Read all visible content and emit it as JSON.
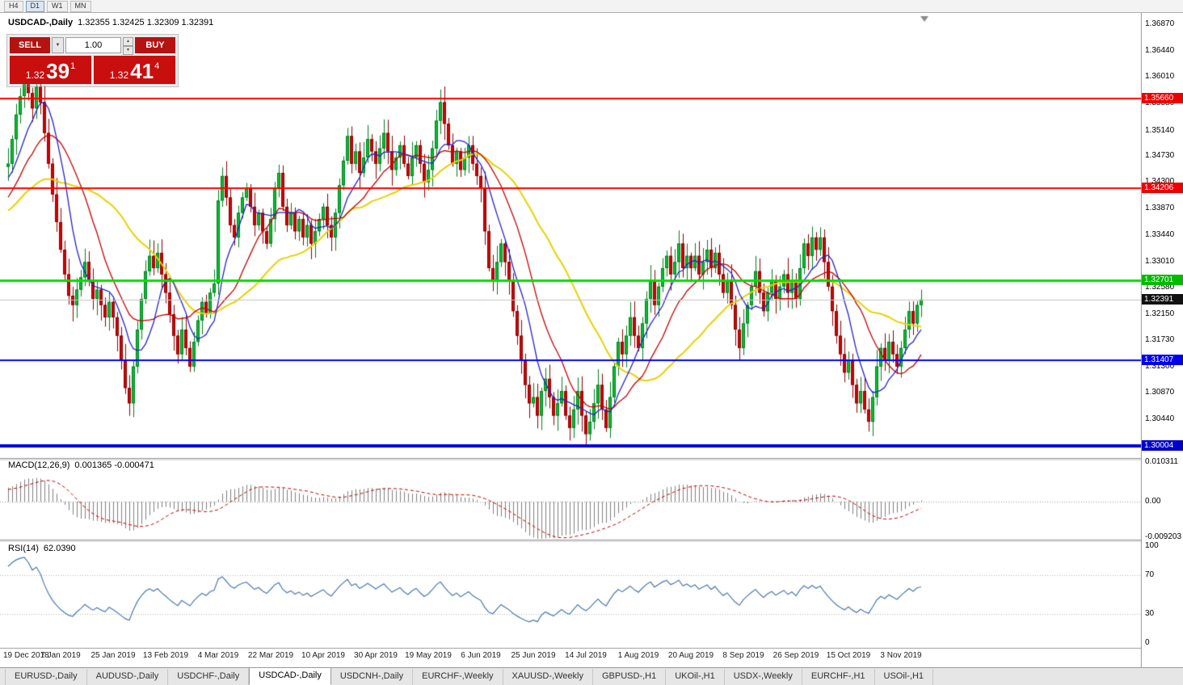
{
  "toolbar": {
    "timeframes": [
      {
        "label": "H4",
        "active": false
      },
      {
        "label": "D1",
        "active": true
      },
      {
        "label": "W1",
        "active": false
      },
      {
        "label": "MN",
        "active": false
      }
    ]
  },
  "header": {
    "title": "USDCAD-,Daily",
    "ohlc": "1.32355 1.32425 1.32309 1.32391"
  },
  "trade_panel": {
    "sell_label": "SELL",
    "buy_label": "BUY",
    "volume": "1.00",
    "combo_arrow": "▼",
    "spin_up": "▲",
    "spin_down": "▼",
    "sell_price": {
      "prefix": "1.32",
      "big": "39",
      "sup": "1"
    },
    "buy_price": {
      "prefix": "1.32",
      "big": "41",
      "sup": "4"
    }
  },
  "tabs": [
    {
      "label": "EURUSD-,Daily",
      "active": false
    },
    {
      "label": "AUDUSD-,Daily",
      "active": false
    },
    {
      "label": "USDCHF-,Daily",
      "active": false
    },
    {
      "label": "USDCAD-,Daily",
      "active": true
    },
    {
      "label": "USDCNH-,Daily",
      "active": false
    },
    {
      "label": "EURCHF-,Weekly",
      "active": false
    },
    {
      "label": "XAUUSD-,Weekly",
      "active": false
    },
    {
      "label": "GBPUSD-,H1",
      "active": false
    },
    {
      "label": "UKOil-,H1",
      "active": false
    },
    {
      "label": "USDX-,Weekly",
      "active": false
    },
    {
      "label": "EURCHF-,H1",
      "active": false
    },
    {
      "label": "USOil-,H1",
      "active": false
    }
  ],
  "chart_data": {
    "type": "candlestick",
    "symbol": "USDCAD-",
    "timeframe": "Daily",
    "current_price": 1.32391,
    "price_range": [
      1.29836,
      1.37028
    ],
    "axis_ticks": [
      "1.36870",
      "1.36440",
      "1.36010",
      "1.35580",
      "1.35140",
      "1.34730",
      "1.34300",
      "1.33870",
      "1.33440",
      "1.33010",
      "1.32580",
      "1.32150",
      "1.31730",
      "1.31300",
      "1.30870",
      "1.30440"
    ],
    "hlines": [
      {
        "price": 1.3566,
        "color": "#FF0000",
        "width": 2,
        "label": "1.35660",
        "label_bg": "#EE0000"
      },
      {
        "price": 1.34206,
        "color": "#FF0000",
        "width": 2,
        "label": "1.34206",
        "label_bg": "#EE0000"
      },
      {
        "price": 1.32701,
        "color": "#00E000",
        "width": 3,
        "label": "1.32701",
        "label_bg": "#00BB00"
      },
      {
        "price": 1.32391,
        "color": "#C4C4C4",
        "width": 1,
        "label": "1.32391",
        "label_bg": "#111111"
      },
      {
        "price": 1.31407,
        "color": "#0000FF",
        "width": 2,
        "label": "1.31407",
        "label_bg": "#0000EE"
      },
      {
        "price": 1.30004,
        "color": "#0000DD",
        "width": 4,
        "label": "1.30004",
        "label_bg": "#0000CC"
      }
    ],
    "colors": {
      "candle_up": "#00C22E",
      "candle_up_border": "#007D1F",
      "candle_down": "#D60000",
      "candle_down_border": "#8A0000"
    },
    "ma": [
      {
        "period": 34,
        "color": "#E8D100",
        "width": 2
      },
      {
        "period": 16,
        "color": "#C40000",
        "width": 1.3
      },
      {
        "period": 8,
        "color": "#2222CC",
        "width": 1.3
      }
    ],
    "warmup": [
      1.33,
      1.331,
      1.33,
      1.332,
      1.334,
      1.333,
      1.335,
      1.337,
      1.336,
      1.338,
      1.34,
      1.339,
      1.341,
      1.342,
      1.341,
      1.343,
      1.344,
      1.343,
      1.345,
      1.3455
    ],
    "closes": [
      1.346,
      1.35,
      1.354,
      1.357,
      1.359,
      1.3575,
      1.355,
      1.3585,
      1.356,
      1.351,
      1.346,
      1.341,
      1.3365,
      1.332,
      1.328,
      1.3245,
      1.323,
      1.3255,
      1.3275,
      1.33,
      1.327,
      1.324,
      1.3255,
      1.323,
      1.321,
      1.3235,
      1.321,
      1.318,
      1.314,
      1.3095,
      1.307,
      1.313,
      1.319,
      1.324,
      1.3285,
      1.331,
      1.329,
      1.3315,
      1.328,
      1.325,
      1.3215,
      1.318,
      1.315,
      1.319,
      1.316,
      1.313,
      1.317,
      1.3205,
      1.3235,
      1.3215,
      1.325,
      1.3265,
      1.34,
      1.344,
      1.3405,
      1.336,
      1.334,
      1.338,
      1.3405,
      1.342,
      1.339,
      1.336,
      1.338,
      1.335,
      1.333,
      1.337,
      1.342,
      1.3445,
      1.339,
      1.336,
      1.338,
      1.335,
      1.337,
      1.334,
      1.336,
      1.333,
      1.335,
      1.337,
      1.339,
      1.336,
      1.334,
      1.338,
      1.3425,
      1.3465,
      1.3505,
      1.346,
      1.348,
      1.3445,
      1.347,
      1.35,
      1.348,
      1.346,
      1.3485,
      1.351,
      1.348,
      1.345,
      1.347,
      1.349,
      1.346,
      1.344,
      1.347,
      1.349,
      1.346,
      1.343,
      1.345,
      1.3485,
      1.353,
      1.356,
      1.3525,
      1.349,
      1.346,
      1.348,
      1.345,
      1.347,
      1.349,
      1.346,
      1.344,
      1.342,
      1.335,
      1.329,
      1.327,
      1.33,
      1.333,
      1.33,
      1.327,
      1.322,
      1.318,
      1.314,
      1.31,
      1.307,
      1.308,
      1.305,
      1.309,
      1.311,
      1.308,
      1.305,
      1.307,
      1.309,
      1.305,
      1.303,
      1.306,
      1.309,
      1.305,
      1.302,
      1.304,
      1.307,
      1.31,
      1.306,
      1.303,
      1.308,
      1.313,
      1.317,
      1.315,
      1.318,
      1.321,
      1.318,
      1.316,
      1.32,
      1.324,
      1.327,
      1.323,
      1.326,
      1.329,
      1.331,
      1.328,
      1.33,
      1.333,
      1.329,
      1.331,
      1.329,
      1.331,
      1.328,
      1.33,
      1.332,
      1.329,
      1.3315,
      1.328,
      1.325,
      1.327,
      1.323,
      1.319,
      1.316,
      1.32,
      1.323,
      1.326,
      1.3285,
      1.325,
      1.322,
      1.325,
      1.327,
      1.324,
      1.326,
      1.328,
      1.325,
      1.327,
      1.324,
      1.329,
      1.333,
      1.331,
      1.334,
      1.332,
      1.334,
      1.33,
      1.326,
      1.322,
      1.318,
      1.315,
      1.312,
      1.314,
      1.31,
      1.307,
      1.309,
      1.306,
      1.304,
      1.308,
      1.313,
      1.316,
      1.314,
      1.317,
      1.315,
      1.313,
      1.316,
      1.319,
      1.322,
      1.32,
      1.323,
      1.3239
    ],
    "date_labels": [
      {
        "i": 0,
        "label": "19 Dec 2018"
      },
      {
        "i": 13,
        "label": "7 Jan 2019"
      },
      {
        "i": 26,
        "label": "25 Jan 2019"
      },
      {
        "i": 39,
        "label": "13 Feb 2019"
      },
      {
        "i": 52,
        "label": "4 Mar 2019"
      },
      {
        "i": 65,
        "label": "22 Mar 2019"
      },
      {
        "i": 78,
        "label": "10 Apr 2019"
      },
      {
        "i": 91,
        "label": "30 Apr 2019"
      },
      {
        "i": 104,
        "label": "19 May 2019"
      },
      {
        "i": 117,
        "label": "6 Jun 2019"
      },
      {
        "i": 130,
        "label": "25 Jun 2019"
      },
      {
        "i": 143,
        "label": "14 Jul 2019"
      },
      {
        "i": 156,
        "label": "1 Aug 2019"
      },
      {
        "i": 169,
        "label": "20 Aug 2019"
      },
      {
        "i": 182,
        "label": "8 Sep 2019"
      },
      {
        "i": 195,
        "label": "26 Sep 2019"
      },
      {
        "i": 208,
        "label": "15 Oct 2019"
      },
      {
        "i": 221,
        "label": "3 Nov 2019"
      }
    ],
    "macd": {
      "label": "MACD(12,26,9)",
      "values": "0.001365 -0.000471",
      "fast": 12,
      "slow": 26,
      "signal_period": 9,
      "range": [
        -0.009203,
        0.010311
      ],
      "axis": [
        {
          "v": 0.010311,
          "label": "0.010311"
        },
        {
          "v": 0,
          "label": "0.00"
        },
        {
          "v": -0.009203,
          "label": "-0.009203"
        }
      ],
      "hist_color": "#7F7F7F",
      "signal_color": "#C40000"
    },
    "rsi": {
      "label": "RSI(14)",
      "value": "62.0390",
      "period": 14,
      "color": "#4878B0",
      "levels": [
        70,
        30
      ],
      "axis": [
        {
          "v": 100,
          "label": "100"
        },
        {
          "v": 70,
          "label": "70"
        },
        {
          "v": 30,
          "label": "30"
        },
        {
          "v": 0,
          "label": "0"
        }
      ]
    }
  }
}
